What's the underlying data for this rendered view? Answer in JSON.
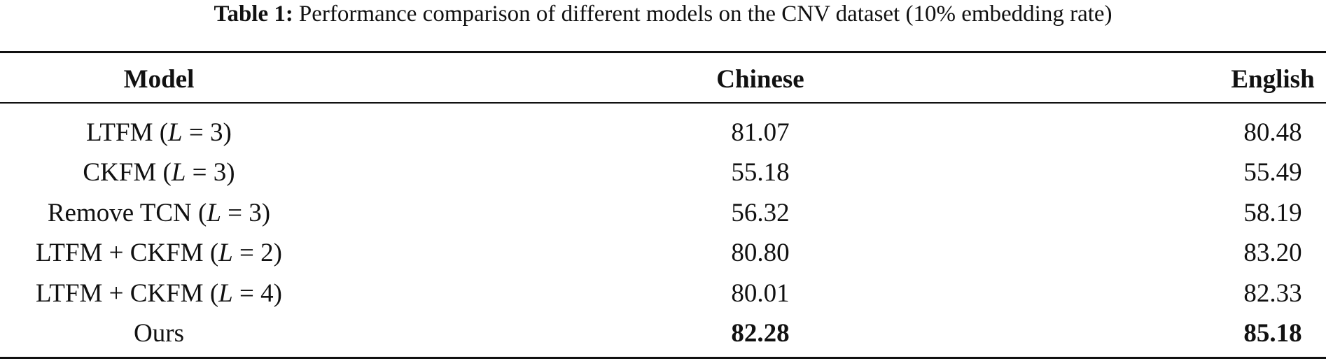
{
  "caption": {
    "label": "Table 1:",
    "text": "Performance comparison of different models on the CNV dataset (10% embedding rate)"
  },
  "table": {
    "header": [
      "Model",
      "Chinese",
      "English"
    ],
    "rows": [
      [
        {
          "prefix": "LTFM (",
          "var": "L",
          "suffix": " = 3)"
        },
        "81.07",
        "80.48"
      ],
      [
        {
          "prefix": "CKFM (",
          "var": "L",
          "suffix": " = 3)"
        },
        "55.18",
        "55.49"
      ],
      [
        {
          "prefix": "Remove TCN (",
          "var": "L",
          "suffix": " = 3)"
        },
        "56.32",
        "58.19"
      ],
      [
        {
          "prefix": "LTFM + CKFM (",
          "var": "L",
          "suffix": " = 2)"
        },
        "80.80",
        "83.20"
      ],
      [
        {
          "prefix": "LTFM + CKFM (",
          "var": "L",
          "suffix": " = 4)"
        },
        "80.01",
        "82.33"
      ],
      [
        {
          "prefix": "Ours",
          "var": null,
          "suffix": null
        },
        "82.28",
        "85.18"
      ]
    ]
  }
}
